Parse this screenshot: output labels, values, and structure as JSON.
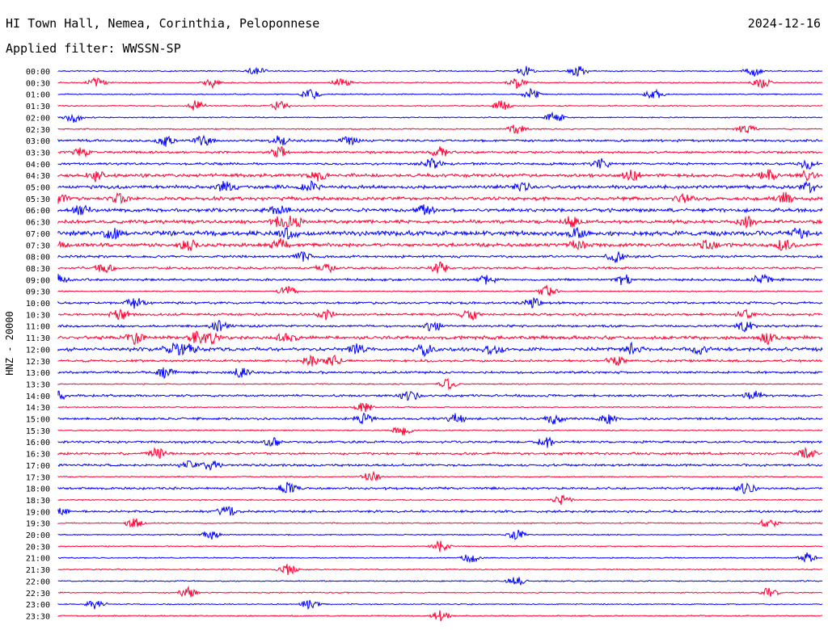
{
  "header": {
    "station": "HI Town Hall, Nemea, Corinthia, Peloponnese",
    "date": "2024-12-16",
    "filter": "Applied filter: WWSSN-SP"
  },
  "colors": {
    "trace_a": "#0000ff",
    "trace_b": "#ff0033",
    "text": "#000000"
  },
  "chart_data": {
    "type": "line",
    "ylabel": "HNZ - 20000",
    "x": [
      "00:00",
      "00:30",
      "01:00",
      "01:30",
      "02:00",
      "02:30",
      "03:00",
      "03:30",
      "04:00",
      "04:30",
      "05:00",
      "05:30",
      "06:00",
      "06:30",
      "07:00",
      "07:30",
      "08:00",
      "08:30",
      "09:00",
      "09:30",
      "10:00",
      "10:30",
      "11:00",
      "11:30",
      "12:00",
      "12:30",
      "13:00",
      "13:30",
      "14:00",
      "14:30",
      "15:00",
      "15:30",
      "16:00",
      "16:30",
      "17:00",
      "17:30",
      "18:00",
      "18:30",
      "19:00",
      "19:30",
      "20:00",
      "20:30",
      "21:00",
      "21:30",
      "22:00",
      "22:30",
      "23:00",
      "23:30"
    ],
    "series": [
      {
        "name": "",
        "values": [
          1,
          1,
          1,
          1,
          1,
          1,
          2,
          2,
          2,
          3,
          3,
          3,
          3,
          3,
          4,
          3,
          2,
          2,
          2,
          1,
          2,
          2,
          2,
          3,
          3,
          2,
          2,
          1,
          2,
          1,
          2,
          1,
          2,
          2,
          2,
          1,
          2,
          1,
          2,
          1,
          1,
          1,
          1,
          1,
          1,
          1,
          1,
          1
        ]
      }
    ],
    "events": [
      {
        "line": 0,
        "pos": [
          0.26,
          0.61,
          0.68,
          0.91
        ]
      },
      {
        "line": 1,
        "pos": [
          0.05,
          0.2,
          0.37,
          0.6,
          0.92
        ]
      },
      {
        "line": 2,
        "pos": [
          0.33,
          0.62,
          0.78
        ]
      },
      {
        "line": 3,
        "pos": [
          0.18,
          0.29,
          0.58
        ]
      },
      {
        "line": 4,
        "pos": [
          0.02,
          0.65
        ]
      },
      {
        "line": 5,
        "pos": [
          0.6,
          0.9
        ]
      },
      {
        "line": 6,
        "pos": [
          0.14,
          0.19,
          0.29,
          0.38
        ]
      },
      {
        "line": 7,
        "pos": [
          0.03,
          0.29,
          0.5
        ]
      },
      {
        "line": 8,
        "pos": [
          0.49,
          0.71,
          0.98
        ]
      },
      {
        "line": 9,
        "pos": [
          0.05,
          0.34,
          0.75,
          0.93,
          0.98
        ]
      },
      {
        "line": 10,
        "pos": [
          0.22,
          0.33,
          0.61,
          0.98
        ]
      },
      {
        "line": 11,
        "pos": [
          0.0,
          0.08,
          0.82,
          0.95
        ]
      },
      {
        "line": 12,
        "pos": [
          0.03,
          0.29,
          0.48
        ]
      },
      {
        "line": 13,
        "pos": [
          0.29,
          0.31,
          0.67,
          0.9
        ]
      },
      {
        "line": 14,
        "pos": [
          0.07,
          0.3,
          0.68,
          0.97
        ]
      },
      {
        "line": 15,
        "pos": [
          0.0,
          0.17,
          0.29,
          0.68,
          0.85,
          0.95
        ]
      },
      {
        "line": 16,
        "pos": [
          0.32,
          0.73
        ]
      },
      {
        "line": 17,
        "pos": [
          0.06,
          0.35,
          0.5
        ]
      },
      {
        "line": 18,
        "pos": [
          0.0,
          0.56,
          0.74,
          0.92
        ]
      },
      {
        "line": 19,
        "pos": [
          0.3,
          0.64
        ]
      },
      {
        "line": 20,
        "pos": [
          0.1,
          0.62
        ]
      },
      {
        "line": 21,
        "pos": [
          0.08,
          0.35,
          0.54,
          0.9
        ]
      },
      {
        "line": 22,
        "pos": [
          0.21,
          0.49,
          0.9
        ]
      },
      {
        "line": 23,
        "pos": [
          0.1,
          0.18,
          0.2,
          0.3,
          0.93
        ]
      },
      {
        "line": 24,
        "pos": [
          0.15,
          0.17,
          0.39,
          0.48,
          0.57,
          0.75,
          0.84
        ]
      },
      {
        "line": 25,
        "pos": [
          0.33,
          0.36,
          0.73
        ]
      },
      {
        "line": 26,
        "pos": [
          0.14,
          0.24
        ]
      },
      {
        "line": 27,
        "pos": [
          0.51
        ]
      },
      {
        "line": 28,
        "pos": [
          0.0,
          0.46,
          0.91
        ]
      },
      {
        "line": 29,
        "pos": [
          0.4
        ]
      },
      {
        "line": 30,
        "pos": [
          0.4,
          0.52,
          0.65,
          0.72
        ]
      },
      {
        "line": 31,
        "pos": [
          0.45
        ]
      },
      {
        "line": 32,
        "pos": [
          0.28,
          0.64
        ]
      },
      {
        "line": 33,
        "pos": [
          0.13,
          0.98
        ]
      },
      {
        "line": 34,
        "pos": [
          0.17,
          0.2
        ]
      },
      {
        "line": 35,
        "pos": [
          0.41
        ]
      },
      {
        "line": 36,
        "pos": [
          0.3,
          0.9
        ]
      },
      {
        "line": 37,
        "pos": [
          0.66
        ]
      },
      {
        "line": 38,
        "pos": [
          0.0,
          0.22
        ]
      },
      {
        "line": 39,
        "pos": [
          0.1,
          0.93
        ]
      },
      {
        "line": 40,
        "pos": [
          0.2,
          0.6
        ]
      },
      {
        "line": 41,
        "pos": [
          0.5
        ]
      },
      {
        "line": 42,
        "pos": [
          0.54,
          0.98
        ]
      },
      {
        "line": 43,
        "pos": [
          0.3
        ]
      },
      {
        "line": 44,
        "pos": [
          0.6
        ]
      },
      {
        "line": 45,
        "pos": [
          0.17,
          0.93
        ]
      },
      {
        "line": 46,
        "pos": [
          0.05,
          0.33
        ]
      },
      {
        "line": 47,
        "pos": [
          0.5
        ]
      }
    ]
  }
}
